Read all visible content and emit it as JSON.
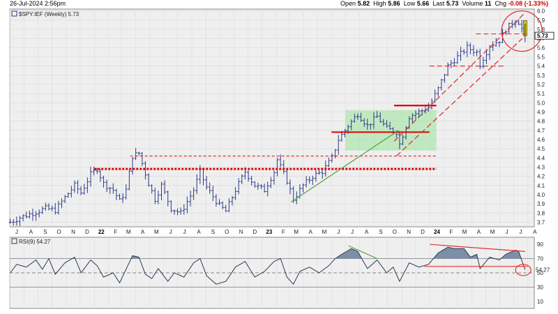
{
  "header": {
    "datetime": "26-Jul-2024 2:56pm",
    "open_label": "Open",
    "open": "5.82",
    "high_label": "High",
    "high": "5.86",
    "low_label": "Low",
    "low": "5.66",
    "last_label": "Last",
    "last": "5.73",
    "volume_label": "Volume",
    "volume": "11",
    "chg_label": "Chg",
    "chg": "-0.08 (-1.33%)"
  },
  "colors": {
    "price_bars": "#2a3a8c",
    "support_red": "#dd0000",
    "channel_red": "#e03030",
    "trend_green": "#5aa840",
    "box_fill": "#9be39b",
    "last_candle": "#d4c400",
    "rsi_fill": "#7d8fa8",
    "rsi_line": "#2b3a55",
    "panel_bg": "#efefef",
    "grid": "#dcdcdc"
  },
  "chart_data": [
    {
      "type": "ohlc",
      "legend": "$SPY:IEF (Weekly) 5.73",
      "last_value_label": "5.73",
      "ylim": [
        3.65,
        6.02
      ],
      "y_ticks": [
        "6.0",
        "5.9",
        "5.8",
        "5.7",
        "5.6",
        "5.5",
        "5.4",
        "5.3",
        "5.2",
        "5.1",
        "5.0",
        "4.9",
        "4.8",
        "4.7",
        "4.6",
        "4.5",
        "4.4",
        "4.3",
        "4.2",
        "4.1",
        "4.0",
        "3.9",
        "3.8",
        "3.7"
      ],
      "x_range": [
        "2021-07-01",
        "2024-08-15"
      ],
      "x_ticks": [
        {
          "date": "2021-07-01",
          "label": "J"
        },
        {
          "date": "2021-08-01",
          "label": "A"
        },
        {
          "date": "2021-09-01",
          "label": "S"
        },
        {
          "date": "2021-10-01",
          "label": "O"
        },
        {
          "date": "2021-11-01",
          "label": "N"
        },
        {
          "date": "2021-12-01",
          "label": "D"
        },
        {
          "date": "2022-01-01",
          "label": "22",
          "year": true
        },
        {
          "date": "2022-02-01",
          "label": "F"
        },
        {
          "date": "2022-03-01",
          "label": "M"
        },
        {
          "date": "2022-04-01",
          "label": "A"
        },
        {
          "date": "2022-05-01",
          "label": "M"
        },
        {
          "date": "2022-06-01",
          "label": "J"
        },
        {
          "date": "2022-07-01",
          "label": "J"
        },
        {
          "date": "2022-08-01",
          "label": "A"
        },
        {
          "date": "2022-09-01",
          "label": "S"
        },
        {
          "date": "2022-10-01",
          "label": "O"
        },
        {
          "date": "2022-11-01",
          "label": "N"
        },
        {
          "date": "2022-12-01",
          "label": "D"
        },
        {
          "date": "2023-01-01",
          "label": "23",
          "year": true
        },
        {
          "date": "2023-02-01",
          "label": "F"
        },
        {
          "date": "2023-03-01",
          "label": "M"
        },
        {
          "date": "2023-04-01",
          "label": "A"
        },
        {
          "date": "2023-05-01",
          "label": "M"
        },
        {
          "date": "2023-06-01",
          "label": "J"
        },
        {
          "date": "2023-07-01",
          "label": "J"
        },
        {
          "date": "2023-08-01",
          "label": "A"
        },
        {
          "date": "2023-09-01",
          "label": "S"
        },
        {
          "date": "2023-10-01",
          "label": "O"
        },
        {
          "date": "2023-11-01",
          "label": "N"
        },
        {
          "date": "2023-12-01",
          "label": "D"
        },
        {
          "date": "2024-01-01",
          "label": "24",
          "year": true
        },
        {
          "date": "2024-02-01",
          "label": "F"
        },
        {
          "date": "2024-03-01",
          "label": "M"
        },
        {
          "date": "2024-04-01",
          "label": "A"
        },
        {
          "date": "2024-05-01",
          "label": "M"
        },
        {
          "date": "2024-06-01",
          "label": "J"
        },
        {
          "date": "2024-07-01",
          "label": "J"
        },
        {
          "date": "2024-08-01",
          "label": "A"
        }
      ],
      "close_path": [
        [
          "2021-07-02",
          3.7
        ],
        [
          "2021-07-23",
          3.75
        ],
        [
          "2021-08-20",
          3.8
        ],
        [
          "2021-09-17",
          3.85
        ],
        [
          "2021-10-08",
          3.83
        ],
        [
          "2021-10-29",
          3.97
        ],
        [
          "2021-11-19",
          4.1
        ],
        [
          "2021-12-03",
          4.02
        ],
        [
          "2021-12-24",
          4.22
        ],
        [
          "2022-01-07",
          4.28
        ],
        [
          "2022-01-21",
          4.12
        ],
        [
          "2022-02-11",
          4.05
        ],
        [
          "2022-02-25",
          3.93
        ],
        [
          "2022-03-11",
          4.05
        ],
        [
          "2022-03-25",
          4.42
        ],
        [
          "2022-04-08",
          4.45
        ],
        [
          "2022-04-29",
          4.12
        ],
        [
          "2022-05-13",
          3.95
        ],
        [
          "2022-05-27",
          4.1
        ],
        [
          "2022-06-17",
          3.85
        ],
        [
          "2022-07-08",
          3.8
        ],
        [
          "2022-08-05",
          4.05
        ],
        [
          "2022-08-19",
          4.25
        ],
        [
          "2022-09-02",
          4.08
        ],
        [
          "2022-09-30",
          3.88
        ],
        [
          "2022-10-14",
          3.82
        ],
        [
          "2022-11-04",
          4.05
        ],
        [
          "2022-11-25",
          4.25
        ],
        [
          "2022-12-16",
          4.1
        ],
        [
          "2023-01-06",
          4.05
        ],
        [
          "2023-01-27",
          4.25
        ],
        [
          "2023-02-03",
          4.38
        ],
        [
          "2023-02-24",
          4.15
        ],
        [
          "2023-03-10",
          3.95
        ],
        [
          "2023-03-31",
          4.1
        ],
        [
          "2023-04-21",
          4.2
        ],
        [
          "2023-05-12",
          4.25
        ],
        [
          "2023-06-02",
          4.4
        ],
        [
          "2023-06-16",
          4.6
        ],
        [
          "2023-07-07",
          4.75
        ],
        [
          "2023-07-28",
          4.88
        ],
        [
          "2023-08-18",
          4.75
        ],
        [
          "2023-09-08",
          4.85
        ],
        [
          "2023-09-29",
          4.72
        ],
        [
          "2023-10-20",
          4.68
        ],
        [
          "2023-10-27",
          4.55
        ],
        [
          "2023-11-17",
          4.85
        ],
        [
          "2023-12-08",
          4.9
        ],
        [
          "2023-12-29",
          4.95
        ],
        [
          "2024-01-19",
          5.15
        ],
        [
          "2024-02-09",
          5.4
        ],
        [
          "2024-03-01",
          5.5
        ],
        [
          "2024-03-22",
          5.6
        ],
        [
          "2024-04-12",
          5.55
        ],
        [
          "2024-04-19",
          5.42
        ],
        [
          "2024-05-10",
          5.62
        ],
        [
          "2024-05-31",
          5.68
        ],
        [
          "2024-06-14",
          5.8
        ],
        [
          "2024-07-05",
          5.9
        ],
        [
          "2024-07-12",
          5.88
        ],
        [
          "2024-07-26",
          5.73
        ]
      ],
      "annotations": {
        "support_2022_2023": {
          "value": 4.28,
          "from": "2022-01-01",
          "to": "2024-01-15"
        },
        "resistance_dashed": {
          "value": 4.42,
          "from": "2022-03-20",
          "to": "2024-01-15"
        },
        "box_2023": {
          "from": "2023-07-01",
          "to": "2024-01-15",
          "y_low": 4.48,
          "y_high": 4.92
        },
        "mid_line": {
          "value": 4.68,
          "from": "2023-06-01",
          "to": "2023-12-31"
        },
        "top_line": {
          "value": 4.97,
          "from": "2023-10-15",
          "to": "2024-01-15"
        },
        "dashed_540": {
          "value": 5.4,
          "from": "2023-12-31",
          "to": "2024-06-15"
        },
        "dashed_575": {
          "value": 5.75,
          "from": "2024-04-10",
          "to": "2024-08-02"
        },
        "trend_green": {
          "from": [
            "2023-03-05",
            3.92
          ],
          "to": [
            "2023-10-25",
            4.7
          ]
        },
        "channel_upper": {
          "from": [
            "2023-10-15",
            4.58
          ],
          "to": [
            "2024-07-26",
            5.98
          ]
        },
        "channel_lower": {
          "from": [
            "2023-10-20",
            4.42
          ],
          "to": [
            "2024-07-20",
            5.7
          ]
        },
        "circle_center": [
          "2024-07-19",
          5.78
        ]
      }
    },
    {
      "type": "area",
      "legend": "RSI(9) 54.27",
      "last_value_label": "54.27",
      "ylim": [
        0,
        100
      ],
      "y_ticks": [
        "90",
        "70",
        "50",
        "30",
        "10"
      ],
      "reference_lines": [
        70,
        30,
        50
      ],
      "path": [
        [
          "2021-07-02",
          50
        ],
        [
          "2021-07-16",
          62
        ],
        [
          "2021-08-06",
          58
        ],
        [
          "2021-08-27",
          68
        ],
        [
          "2021-09-10",
          55
        ],
        [
          "2021-09-24",
          70
        ],
        [
          "2021-10-08",
          48
        ],
        [
          "2021-10-29",
          64
        ],
        [
          "2021-11-19",
          72
        ],
        [
          "2021-12-03",
          50
        ],
        [
          "2021-12-24",
          68
        ],
        [
          "2022-01-07",
          60
        ],
        [
          "2022-01-21",
          44
        ],
        [
          "2022-02-11",
          50
        ],
        [
          "2022-02-25",
          36
        ],
        [
          "2022-03-11",
          55
        ],
        [
          "2022-03-25",
          74
        ],
        [
          "2022-04-08",
          72
        ],
        [
          "2022-04-22",
          48
        ],
        [
          "2022-05-06",
          42
        ],
        [
          "2022-05-20",
          56
        ],
        [
          "2022-06-10",
          38
        ],
        [
          "2022-06-24",
          50
        ],
        [
          "2022-07-15",
          44
        ],
        [
          "2022-08-05",
          64
        ],
        [
          "2022-08-19",
          70
        ],
        [
          "2022-09-02",
          46
        ],
        [
          "2022-09-23",
          34
        ],
        [
          "2022-10-14",
          38
        ],
        [
          "2022-11-04",
          58
        ],
        [
          "2022-11-25",
          66
        ],
        [
          "2022-12-16",
          44
        ],
        [
          "2023-01-06",
          52
        ],
        [
          "2023-01-27",
          66
        ],
        [
          "2023-02-10",
          70
        ],
        [
          "2023-02-24",
          44
        ],
        [
          "2023-03-10",
          34
        ],
        [
          "2023-03-24",
          52
        ],
        [
          "2023-04-14",
          58
        ],
        [
          "2023-05-05",
          50
        ],
        [
          "2023-05-26",
          60
        ],
        [
          "2023-06-09",
          70
        ],
        [
          "2023-06-23",
          76
        ],
        [
          "2023-07-14",
          84
        ],
        [
          "2023-07-28",
          80
        ],
        [
          "2023-08-18",
          56
        ],
        [
          "2023-09-08",
          68
        ],
        [
          "2023-09-29",
          50
        ],
        [
          "2023-10-13",
          58
        ],
        [
          "2023-10-27",
          38
        ],
        [
          "2023-11-17",
          64
        ],
        [
          "2023-12-08",
          58
        ],
        [
          "2023-12-29",
          62
        ],
        [
          "2024-01-19",
          78
        ],
        [
          "2024-02-09",
          86
        ],
        [
          "2024-02-23",
          84
        ],
        [
          "2024-03-15",
          84
        ],
        [
          "2024-03-29",
          72
        ],
        [
          "2024-04-12",
          76
        ],
        [
          "2024-04-19",
          56
        ],
        [
          "2024-05-10",
          72
        ],
        [
          "2024-05-31",
          68
        ],
        [
          "2024-06-14",
          76
        ],
        [
          "2024-07-05",
          82
        ],
        [
          "2024-07-12",
          80
        ],
        [
          "2024-07-26",
          54.27
        ]
      ],
      "annotations": {
        "green_divergence": {
          "from": [
            "2023-07-08",
            88
          ],
          "to": [
            "2023-09-08",
            70
          ]
        },
        "top_red_line": {
          "from": [
            "2024-01-01",
            90
          ],
          "to": [
            "2024-07-26",
            80
          ]
        },
        "mid_red_line": {
          "value": 59,
          "from": "2023-12-20",
          "to": "2024-08-01"
        },
        "circle_center": [
          "2024-07-22",
          54
        ]
      }
    }
  ]
}
